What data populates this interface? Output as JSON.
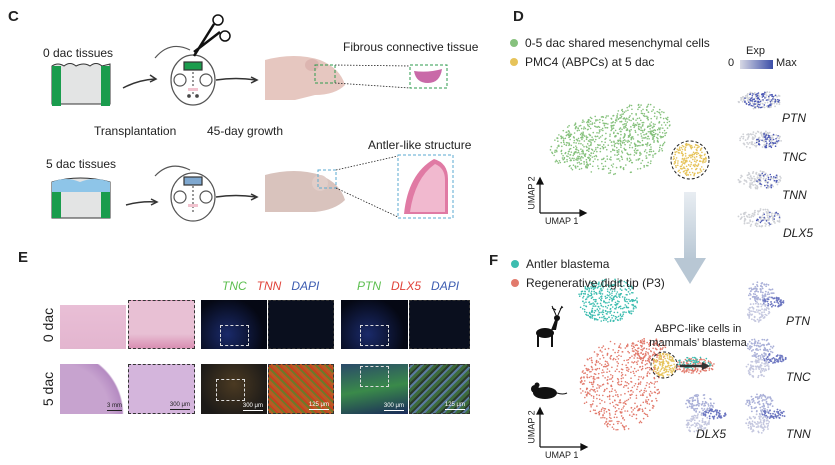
{
  "panel_c": {
    "label": "C",
    "tissue_0": "0 dac tissues",
    "tissue_5": "5 dac tissues",
    "step_transplant": "Transplantation",
    "step_growth": "45-day growth",
    "result_0": "Fibrous connective tissue",
    "result_5": "Antler-like structure",
    "colors": {
      "tissue_green": "#1a9c4d",
      "tissue_blue": "#8ec5e8",
      "tissue_gray": "#e3e4e4"
    }
  },
  "panel_d": {
    "label": "D",
    "legend": [
      {
        "label": "0-5 dac shared mesenchymal cells",
        "color": "#86c17d"
      },
      {
        "label": "PMC4 (ABPCs) at 5 dac",
        "color": "#e6c35a"
      }
    ],
    "exp_title": "Exp",
    "exp_min": "0",
    "exp_max": "Max",
    "axis_x": "UMAP 1",
    "axis_y": "UMAP 2",
    "genes": [
      "PTN",
      "TNC",
      "TNN",
      "DLX5"
    ]
  },
  "panel_e": {
    "label": "E",
    "rows": [
      "0 dac",
      "5 dac"
    ],
    "stain_1": [
      {
        "text": "TNC",
        "color": "#5cbf4f"
      },
      {
        "text": "TNN",
        "color": "#e0433a"
      },
      {
        "text": "DAPI",
        "color": "#3b5bb0"
      }
    ],
    "stain_2": [
      {
        "text": "PTN",
        "color": "#5cbf4f"
      },
      {
        "text": "DLX5",
        "color": "#e0433a"
      },
      {
        "text": "DAPI",
        "color": "#3b5bb0"
      }
    ],
    "scale_bars": [
      "3 mm",
      "300 μm",
      "300 μm",
      "125 μm",
      "300 μm",
      "125 μm"
    ]
  },
  "panel_f": {
    "label": "F",
    "legend": [
      {
        "label": "Antler blastema",
        "color": "#3dbdb0"
      },
      {
        "label": "Regenerative digit tip (P3)",
        "color": "#e27a6c"
      }
    ],
    "annotation": "ABPC-like cells in mammals’ blastema",
    "axis_x": "UMAP 1",
    "axis_y": "UMAP 2",
    "genes": [
      "PTN",
      "TNC",
      "DLX5",
      "TNN"
    ]
  }
}
